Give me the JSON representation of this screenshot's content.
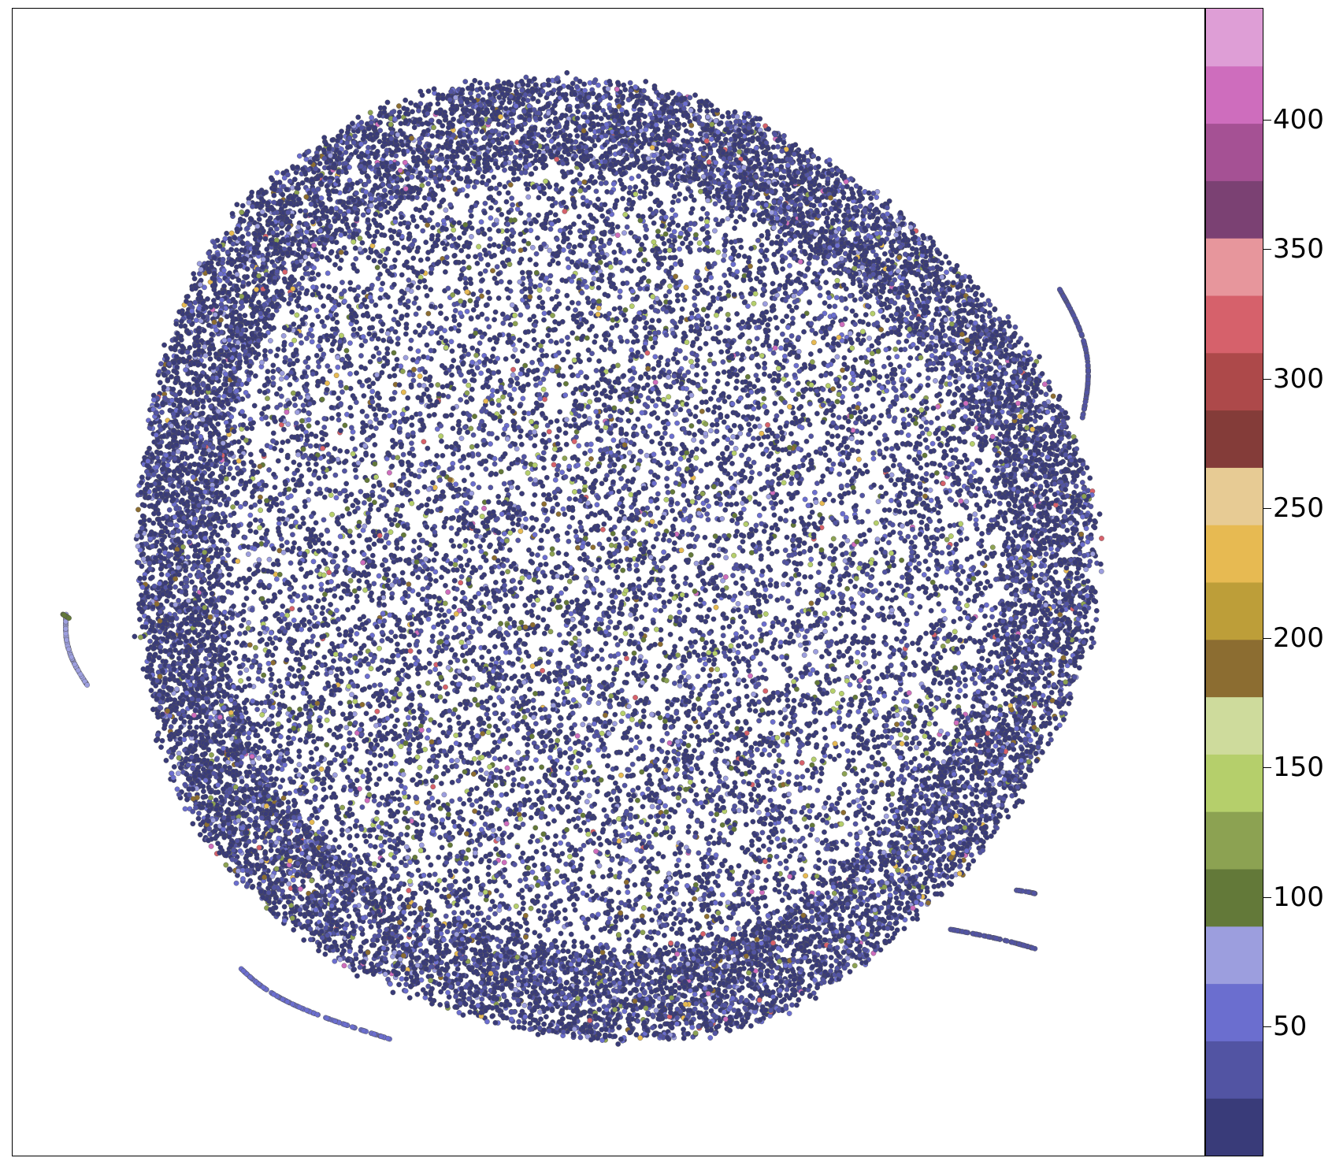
{
  "chart_data": {
    "type": "scatter",
    "title": "",
    "xlabel": "",
    "ylabel": "",
    "axes_visible": false,
    "description_of_points": "dense 2D embedding of roughly circular shape colored by a categorical value",
    "colorbar": {
      "colormap": "tab20b",
      "vmin": 0,
      "vmax": 443,
      "ticks": [
        50,
        100,
        150,
        200,
        250,
        300,
        350,
        400
      ],
      "tick_labels": [
        "50",
        "100",
        "150",
        "200",
        "250",
        "300",
        "350",
        "400"
      ],
      "colors": [
        "#393b79",
        "#5254a3",
        "#6b6ecf",
        "#9c9ede",
        "#637939",
        "#8ca252",
        "#b5cf6b",
        "#cedb9c",
        "#8c6d31",
        "#bd9e39",
        "#e7ba52",
        "#e7cb94",
        "#843c39",
        "#ad494a",
        "#d6616b",
        "#e7969c",
        "#7b4173",
        "#a55194",
        "#ce6dbd",
        "#de9ed6"
      ]
    },
    "dominant_color": "#393b79",
    "secondary_colors": [
      "#5254a3",
      "#6b6ecf",
      "#9c9ede",
      "#637939",
      "#b5cf6b"
    ]
  }
}
